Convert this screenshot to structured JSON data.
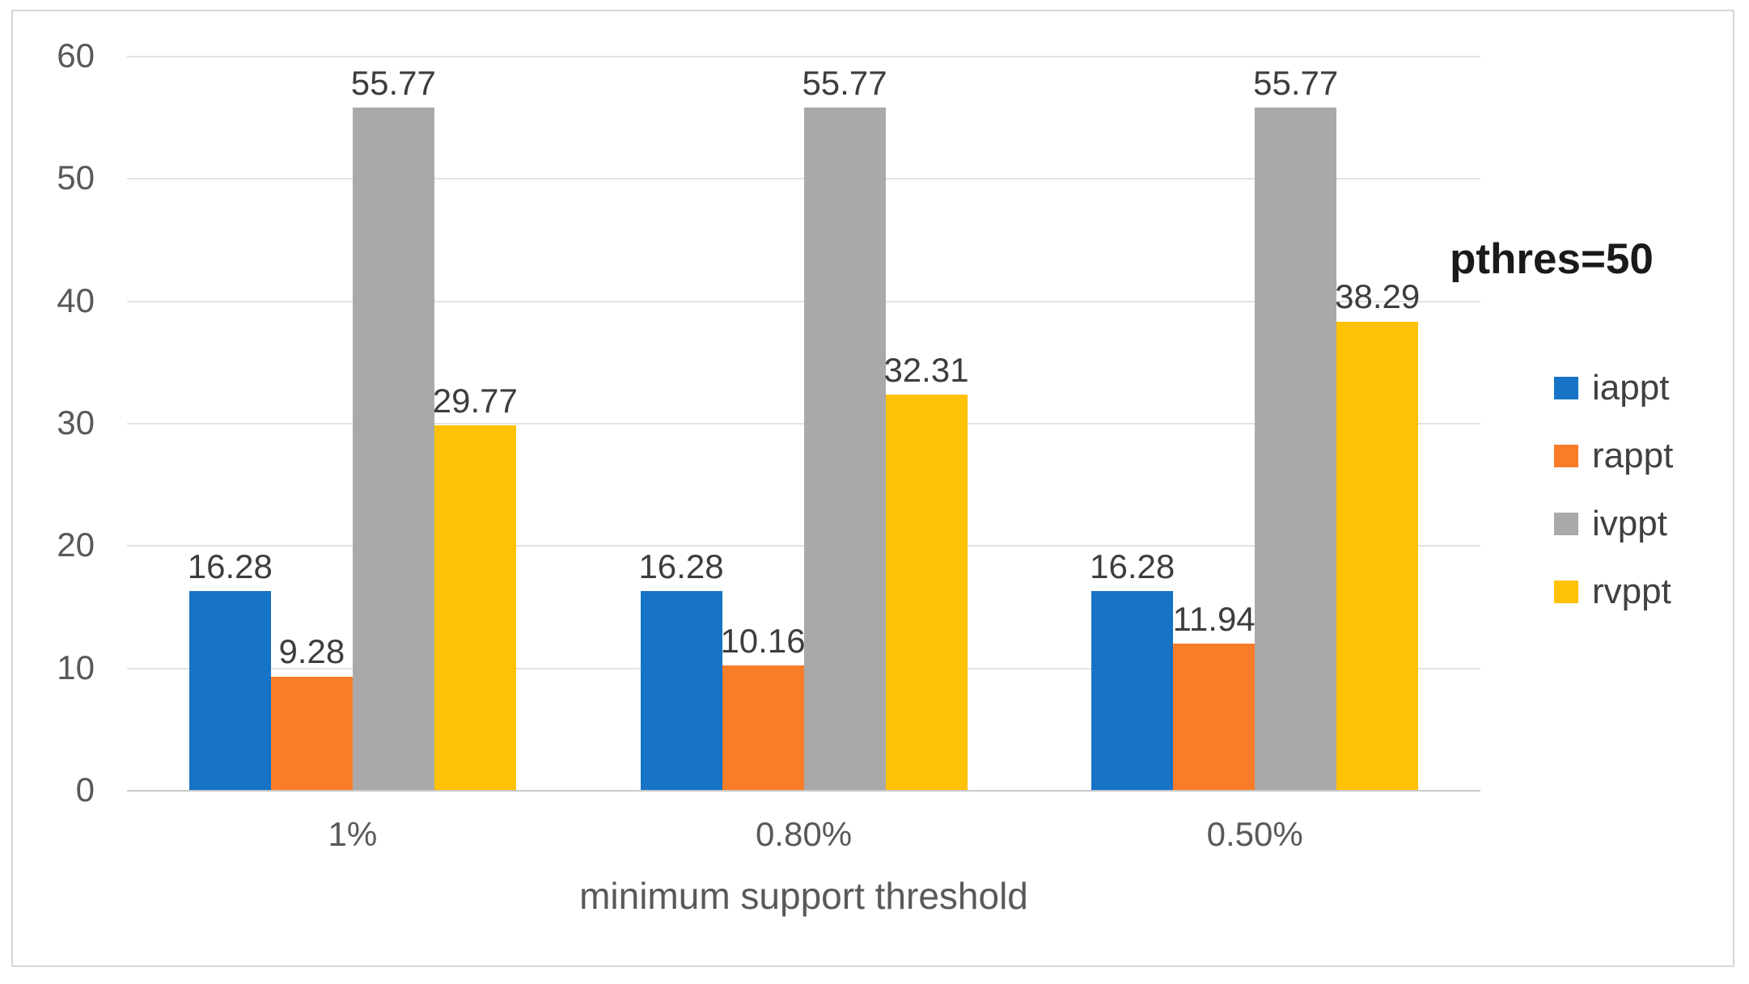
{
  "chart_data": {
    "type": "bar",
    "title": "",
    "categories": [
      "1%",
      "0.80%",
      "0.50%"
    ],
    "series": [
      {
        "name": "iappt",
        "color": "#1673c5",
        "values": [
          16.28,
          16.28,
          16.28
        ]
      },
      {
        "name": "rappt",
        "color": "#f97d28",
        "values": [
          9.28,
          10.16,
          11.94
        ]
      },
      {
        "name": "ivppt",
        "color": "#a9a9a9",
        "values": [
          55.77,
          55.77,
          55.77
        ]
      },
      {
        "name": "rvppt",
        "color": "#ffc103",
        "values": [
          29.77,
          32.31,
          38.29
        ]
      }
    ],
    "xlabel": "minimum support threshold",
    "ylabel": "",
    "ylim": [
      0,
      60
    ],
    "yticks": [
      0,
      10,
      20,
      30,
      40,
      50,
      60
    ],
    "grid": "horizontal",
    "data_labels": true,
    "data_label_decimals": 2,
    "legend_position": "right",
    "annotation": "pthres=50"
  },
  "style": {
    "gridline_color": "#e2e2e2",
    "baseline_color": "#c9c9c9",
    "tick_label_color": "#595959",
    "data_label_color": "#3d3d3d",
    "legend_text_color": "#404040",
    "annotation_color": "#1a1a1a",
    "frame_border_color": "#d6d6d6",
    "background": "#ffffff"
  }
}
